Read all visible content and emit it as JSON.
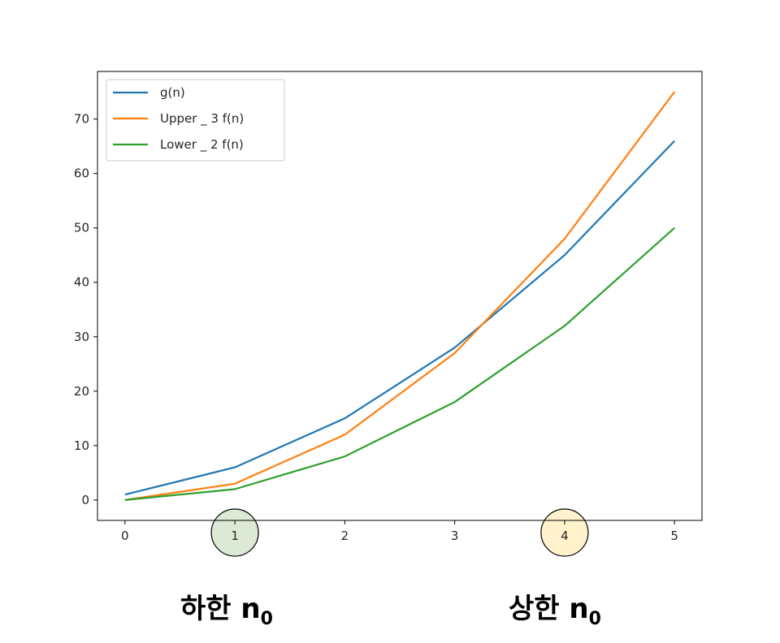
{
  "chart_data": {
    "type": "line",
    "x": [
      0,
      1,
      2,
      3,
      4,
      5
    ],
    "series": [
      {
        "name": "g(n)",
        "color": "#1f77b4",
        "values": [
          1,
          6,
          15,
          28,
          45,
          66
        ]
      },
      {
        "name": "Upper _ 3 f(n)",
        "color": "#ff7f0e",
        "values": [
          0,
          3,
          12,
          27,
          48,
          75
        ]
      },
      {
        "name": "Lower _ 2 f(n)",
        "color": "#2ca02c",
        "values": [
          0,
          2,
          8,
          18,
          32,
          50
        ]
      }
    ],
    "xlim": [
      -0.25,
      5.25
    ],
    "ylim": [
      -3.75,
      78.75
    ],
    "xticks": [
      "0",
      "1",
      "2",
      "3",
      "4",
      "5"
    ],
    "yticks": [
      "0",
      "10",
      "20",
      "30",
      "40",
      "50",
      "60",
      "70"
    ],
    "legend": "upper-left",
    "grid": false,
    "title": "",
    "xlabel": "",
    "ylabel": ""
  },
  "highlights": [
    {
      "x_tick": "1",
      "fill": "#dce9d5"
    },
    {
      "x_tick": "4",
      "fill": "#fff2cc"
    }
  ],
  "annotations": {
    "lower": {
      "text": "하한 n",
      "sub": "0"
    },
    "upper": {
      "text": "상한 n",
      "sub": "0"
    }
  }
}
